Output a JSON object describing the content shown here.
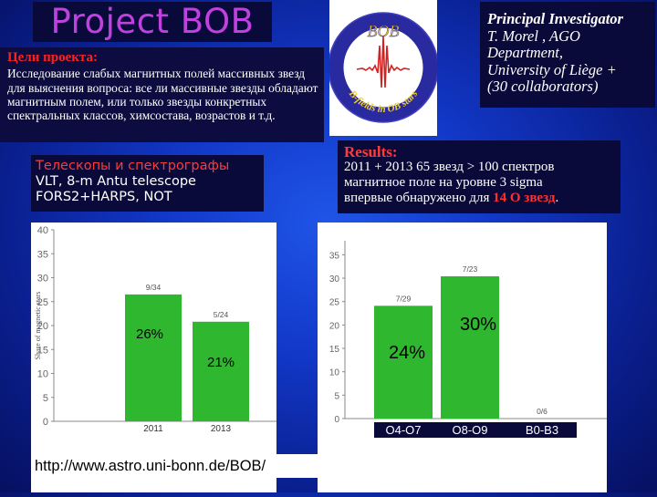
{
  "title": "Project BOB",
  "goals": {
    "heading": "Цели проекта:",
    "text": "Исследование слабых магнитных полей массивных звезд для выяснения вопроса: все ли массивные звезды обладают магнитным полем, или только звезды конкретных спектральных классов, химсостава, возрастов и т.д."
  },
  "telescopes": {
    "heading": "Телескопы и спектрографы",
    "line1": "VLT, 8-m Antu telescope",
    "line2": "FORS2+HARPS, NOT"
  },
  "logo": {
    "top_text": "BOB",
    "bottom_text": "B-fields in OB stars"
  },
  "pi": {
    "heading": "Principal Investigator",
    "line1": "T. Morel , AGO",
    "line2": "Department,",
    "line3": "University of Liège +",
    "line4": "(30 collaborators)"
  },
  "results": {
    "heading": "Results:",
    "line1": "2011 + 2013 65 звезд > 100 спектров",
    "line2": "магнитное поле на уровне 3 sigma",
    "line3_pre": "впервые обнаружено для ",
    "line3_hl": "14 O звезд",
    "line3_post": "."
  },
  "url": "http://www.astro.uni-bonn.de/BOB/",
  "colors": {
    "bar": "#2fb82f",
    "accent_red": "#ff3030",
    "title": "#c040e0"
  },
  "chart_data": [
    {
      "type": "bar",
      "ylabel": "Share of magnetic stars",
      "ylim": [
        0,
        40
      ],
      "yticks": [
        0,
        5,
        10,
        15,
        20,
        25,
        30,
        35,
        40
      ],
      "categories": [
        "2011",
        "2013"
      ],
      "values": [
        26.5,
        20.8
      ],
      "data_labels": [
        "9/34",
        "5/24"
      ],
      "annotations": [
        "26%",
        "21%"
      ]
    },
    {
      "type": "bar",
      "ylim": [
        0,
        38
      ],
      "yticks": [
        0,
        5,
        10,
        15,
        20,
        25,
        30,
        35
      ],
      "categories": [
        "O4-O7",
        "O8-O9",
        "B0-B3"
      ],
      "values": [
        24.1,
        30.4,
        0
      ],
      "data_labels": [
        "7/29",
        "7/23",
        "0/6"
      ],
      "annotations": [
        "24%",
        "30%"
      ]
    }
  ]
}
